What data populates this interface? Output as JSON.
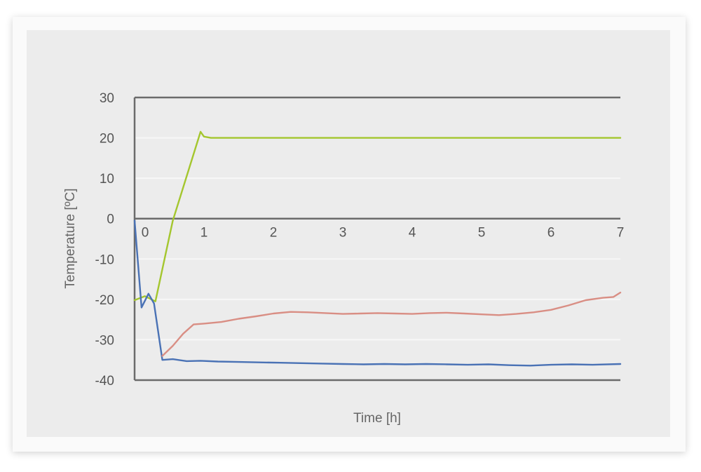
{
  "chart_data": {
    "type": "line",
    "xlabel": "Time [h]",
    "ylabel": "Temperature [ºC]",
    "xlim": [
      0,
      7
    ],
    "ylim": [
      -40,
      30
    ],
    "x_ticks": [
      0,
      1,
      2,
      3,
      4,
      5,
      6,
      7
    ],
    "y_ticks": [
      30,
      20,
      10,
      0,
      -10,
      -20,
      -30,
      -40
    ],
    "grid": true,
    "legend": "none",
    "series": [
      {
        "color": "#a4c62e",
        "points": [
          [
            0,
            -20.2
          ],
          [
            0.15,
            -19.2
          ],
          [
            0.3,
            -20.5
          ],
          [
            0.55,
            -0.5
          ],
          [
            0.95,
            21.5
          ],
          [
            1.0,
            20.3
          ],
          [
            1.1,
            20.0
          ],
          [
            7.0,
            20.0
          ]
        ]
      },
      {
        "color": "#4a72b5",
        "points": [
          [
            0,
            -0.5
          ],
          [
            0.1,
            -22
          ],
          [
            0.2,
            -18.6
          ],
          [
            0.28,
            -21
          ],
          [
            0.4,
            -35
          ],
          [
            0.55,
            -34.8
          ],
          [
            0.75,
            -35.3
          ],
          [
            0.95,
            -35.2
          ],
          [
            1.2,
            -35.4
          ],
          [
            1.5,
            -35.5
          ],
          [
            1.8,
            -35.6
          ],
          [
            2.1,
            -35.7
          ],
          [
            2.4,
            -35.8
          ],
          [
            2.7,
            -35.9
          ],
          [
            3.0,
            -36
          ],
          [
            3.3,
            -36.1
          ],
          [
            3.6,
            -36
          ],
          [
            3.9,
            -36.1
          ],
          [
            4.2,
            -36
          ],
          [
            4.5,
            -36.1
          ],
          [
            4.8,
            -36.2
          ],
          [
            5.1,
            -36.1
          ],
          [
            5.4,
            -36.3
          ],
          [
            5.7,
            -36.4
          ],
          [
            6.0,
            -36.2
          ],
          [
            6.3,
            -36.1
          ],
          [
            6.6,
            -36.2
          ],
          [
            7.0,
            -36
          ]
        ]
      },
      {
        "color": "#d98e84",
        "points": [
          [
            0.4,
            -34
          ],
          [
            0.55,
            -31.5
          ],
          [
            0.7,
            -28.5
          ],
          [
            0.85,
            -26.2
          ],
          [
            1.0,
            -26
          ],
          [
            1.25,
            -25.6
          ],
          [
            1.5,
            -24.8
          ],
          [
            1.75,
            -24.2
          ],
          [
            2.0,
            -23.5
          ],
          [
            2.25,
            -23.1
          ],
          [
            2.5,
            -23.2
          ],
          [
            2.75,
            -23.4
          ],
          [
            3.0,
            -23.6
          ],
          [
            3.25,
            -23.5
          ],
          [
            3.5,
            -23.4
          ],
          [
            3.75,
            -23.5
          ],
          [
            4.0,
            -23.6
          ],
          [
            4.25,
            -23.4
          ],
          [
            4.5,
            -23.3
          ],
          [
            4.75,
            -23.5
          ],
          [
            5.0,
            -23.7
          ],
          [
            5.25,
            -23.9
          ],
          [
            5.5,
            -23.6
          ],
          [
            5.75,
            -23.2
          ],
          [
            6.0,
            -22.6
          ],
          [
            6.25,
            -21.5
          ],
          [
            6.5,
            -20.2
          ],
          [
            6.75,
            -19.6
          ],
          [
            6.9,
            -19.4
          ],
          [
            7.0,
            -18.3
          ]
        ]
      }
    ]
  }
}
